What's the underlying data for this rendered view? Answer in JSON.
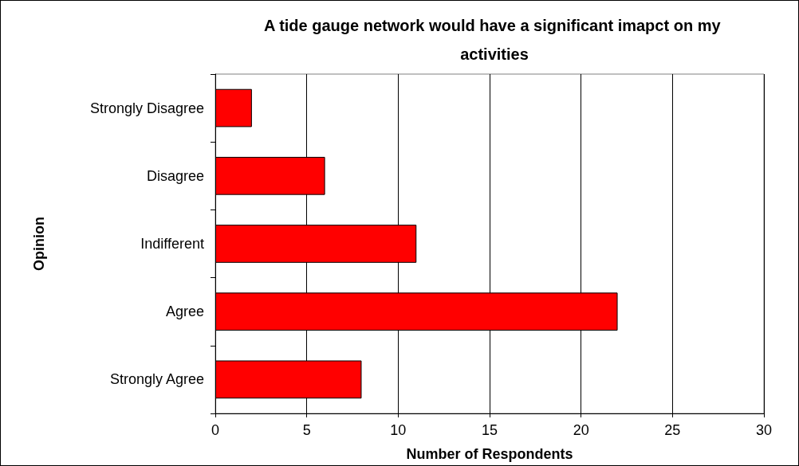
{
  "chart_data": {
    "type": "bar",
    "orientation": "horizontal",
    "title": "A tide gauge network would have a significant imapct on my activities",
    "xlabel": "Number of Respondents",
    "ylabel": "Opinion",
    "categories": [
      "Strongly Disagree",
      "Disagree",
      "Indifferent",
      "Agree",
      "Strongly Agree"
    ],
    "values": [
      2,
      6,
      11,
      22,
      8
    ],
    "color": "#ff0000",
    "xlim": [
      0,
      30
    ],
    "xticks": [
      0,
      5,
      10,
      15,
      20,
      25,
      30
    ],
    "grid": "x"
  }
}
